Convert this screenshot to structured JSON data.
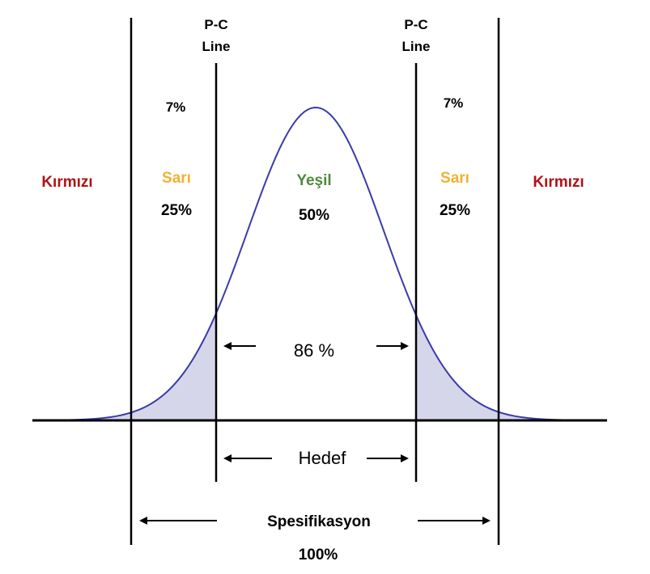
{
  "pc_line_left": {
    "line1": "P-C",
    "line2": "Line"
  },
  "pc_line_right": {
    "line1": "P-C",
    "line2": "Line"
  },
  "zones": {
    "red_left": {
      "label": "Kırmızı"
    },
    "yellow_left": {
      "label": "Sarı",
      "percent": "25%",
      "tail_percent": "7%"
    },
    "green": {
      "label": "Yeşil",
      "percent": "50%"
    },
    "yellow_right": {
      "label": "Sarı",
      "percent": "25%",
      "tail_percent": "7%"
    },
    "red_right": {
      "label": "Kırmızı"
    }
  },
  "spans": {
    "inner": {
      "label": "86 %"
    },
    "target": {
      "label": "Hedef"
    },
    "spec": {
      "label": "Spesifikasyon",
      "percent": "100%"
    }
  },
  "colors": {
    "red": "#b01217",
    "yellow": "#f2b132",
    "green": "#4e8a3c",
    "curve": "#3b3ba8",
    "tail_fill": "#d5d6ea",
    "ink": "#000000"
  }
}
